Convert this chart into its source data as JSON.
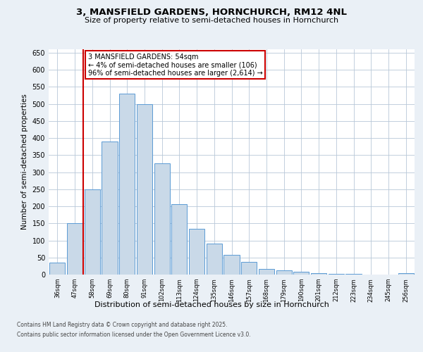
{
  "title1": "3, MANSFIELD GARDENS, HORNCHURCH, RM12 4NL",
  "title2": "Size of property relative to semi-detached houses in Hornchurch",
  "xlabel": "Distribution of semi-detached houses by size in Hornchurch",
  "ylabel": "Number of semi-detached properties",
  "categories": [
    "36sqm",
    "47sqm",
    "58sqm",
    "69sqm",
    "80sqm",
    "91sqm",
    "102sqm",
    "113sqm",
    "124sqm",
    "135sqm",
    "146sqm",
    "157sqm",
    "168sqm",
    "179sqm",
    "190sqm",
    "201sqm",
    "212sqm",
    "223sqm",
    "234sqm",
    "245sqm",
    "256sqm"
  ],
  "values": [
    35,
    150,
    250,
    390,
    530,
    500,
    325,
    207,
    135,
    90,
    57,
    38,
    17,
    12,
    8,
    5,
    3,
    2,
    1,
    1,
    4
  ],
  "bar_color": "#c9d9e8",
  "bar_edge_color": "#5b9bd5",
  "annotation_title": "3 MANSFIELD GARDENS: 54sqm",
  "annotation_line1": "← 4% of semi-detached houses are smaller (106)",
  "annotation_line2": "96% of semi-detached houses are larger (2,614) →",
  "vline_color": "#cc0000",
  "annotation_box_color": "#ffffff",
  "annotation_box_edge": "#cc0000",
  "ylim": [
    0,
    660
  ],
  "yticks": [
    0,
    50,
    100,
    150,
    200,
    250,
    300,
    350,
    400,
    450,
    500,
    550,
    600,
    650
  ],
  "footer1": "Contains HM Land Registry data © Crown copyright and database right 2025.",
  "footer2": "Contains public sector information licensed under the Open Government Licence v3.0.",
  "bg_color": "#eaf0f6",
  "plot_bg_color": "#ffffff"
}
